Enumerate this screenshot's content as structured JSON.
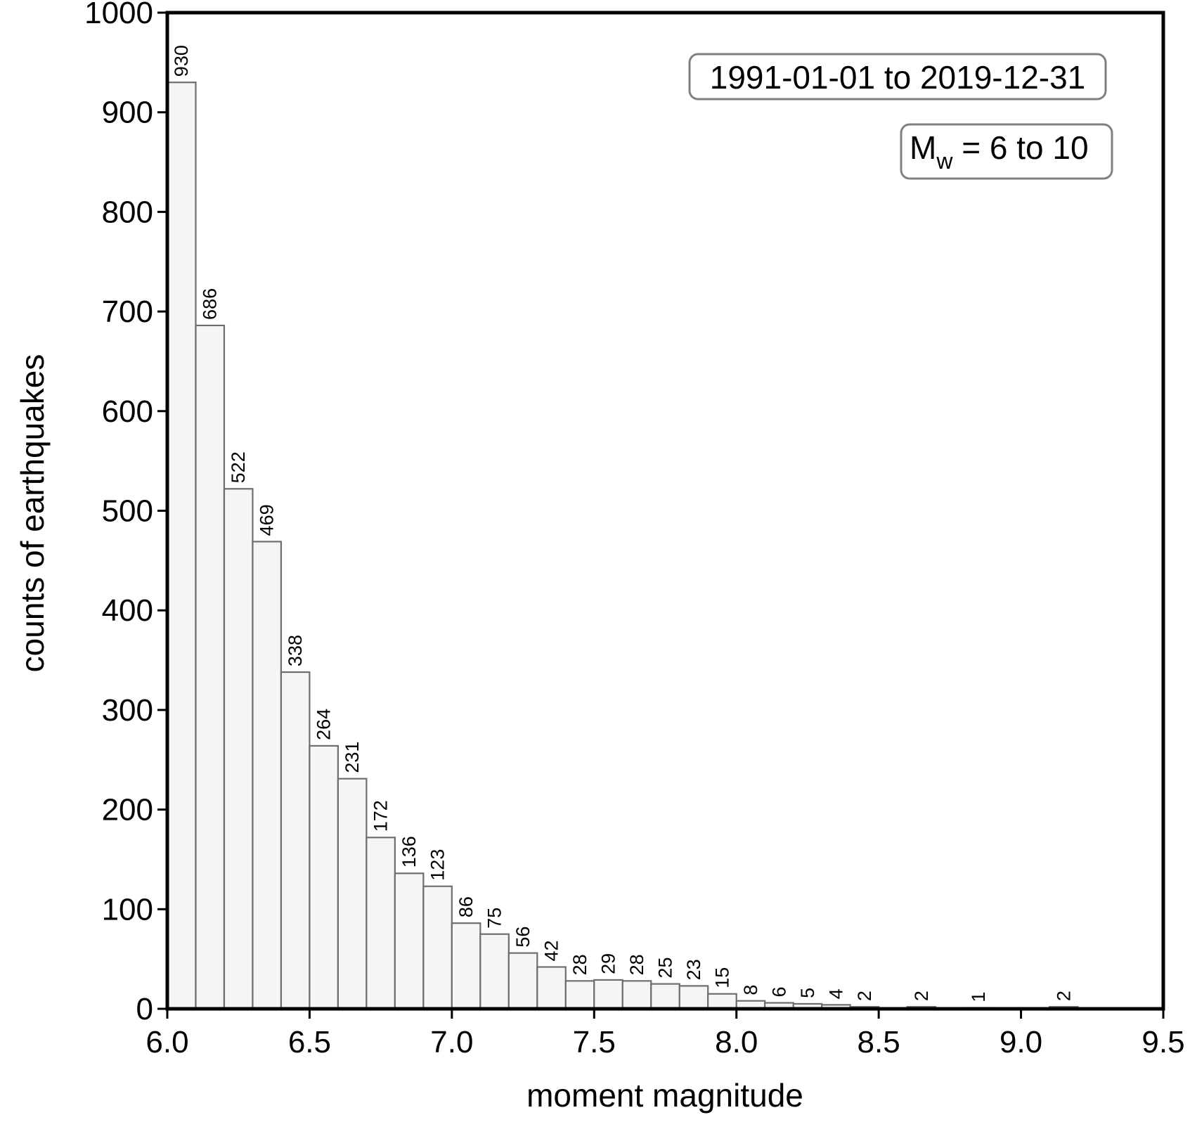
{
  "chart_data": {
    "type": "bar",
    "xlabel": "moment magnitude",
    "ylabel": "counts of earthquakes",
    "xlim": [
      6.0,
      9.5
    ],
    "ylim": [
      0,
      1000
    ],
    "xticks": [
      "6.0",
      "6.5",
      "7.0",
      "7.5",
      "8.0",
      "8.5",
      "9.0",
      "9.5"
    ],
    "yticks": [
      "0",
      "100",
      "200",
      "300",
      "400",
      "500",
      "600",
      "700",
      "800",
      "900",
      "1000"
    ],
    "bin_width": 0.1,
    "bins": [
      {
        "x": 6.0,
        "count": 930
      },
      {
        "x": 6.1,
        "count": 686
      },
      {
        "x": 6.2,
        "count": 522
      },
      {
        "x": 6.3,
        "count": 469
      },
      {
        "x": 6.4,
        "count": 338
      },
      {
        "x": 6.5,
        "count": 264
      },
      {
        "x": 6.6,
        "count": 231
      },
      {
        "x": 6.7,
        "count": 172
      },
      {
        "x": 6.8,
        "count": 136
      },
      {
        "x": 6.9,
        "count": 123
      },
      {
        "x": 7.0,
        "count": 86
      },
      {
        "x": 7.1,
        "count": 75
      },
      {
        "x": 7.2,
        "count": 56
      },
      {
        "x": 7.3,
        "count": 42
      },
      {
        "x": 7.4,
        "count": 28
      },
      {
        "x": 7.5,
        "count": 29
      },
      {
        "x": 7.6,
        "count": 28
      },
      {
        "x": 7.7,
        "count": 25
      },
      {
        "x": 7.8,
        "count": 23
      },
      {
        "x": 7.9,
        "count": 15
      },
      {
        "x": 8.0,
        "count": 8
      },
      {
        "x": 8.1,
        "count": 6
      },
      {
        "x": 8.2,
        "count": 5
      },
      {
        "x": 8.3,
        "count": 4
      },
      {
        "x": 8.4,
        "count": 2
      },
      {
        "x": 8.6,
        "count": 2
      },
      {
        "x": 8.8,
        "count": 1
      },
      {
        "x": 9.1,
        "count": 2
      }
    ],
    "bar_fill": "#f5f5f5",
    "bar_edge": "#6e6e6e",
    "annotations": {
      "date_range": "1991-01-01 to 2019-12-31",
      "magnitude_symbol": "M",
      "magnitude_subscript": "w",
      "magnitude_range": " = 6 to 10"
    },
    "grid": false,
    "legend": "none"
  }
}
